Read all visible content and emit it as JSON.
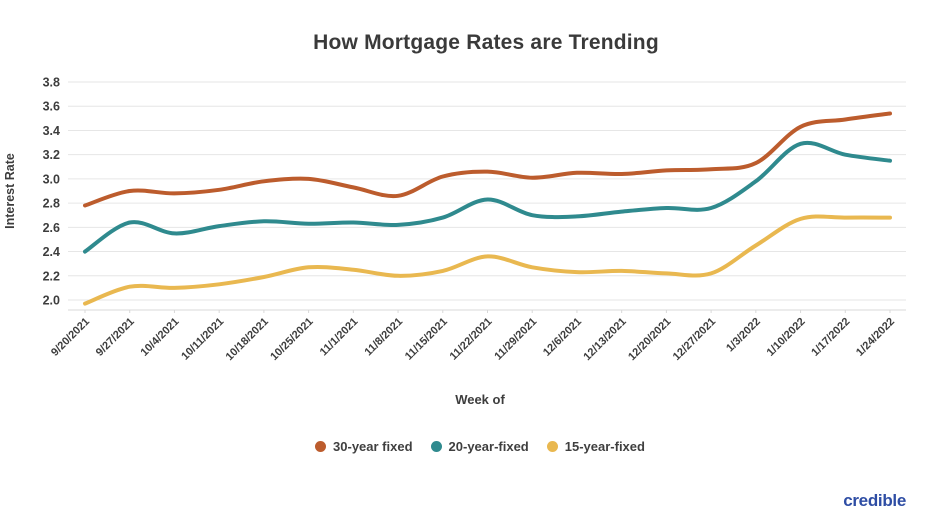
{
  "title": "How Mortgage Rates are Trending",
  "logo": "credible",
  "colors": {
    "text": "#3d3d3d",
    "gridline": "#e6e6e6",
    "axis_line": "#d8d8d8",
    "brand_navy": "#2e4da4"
  },
  "chart_data": {
    "type": "line",
    "title": "How Mortgage Rates are Trending",
    "xlabel": "Week of",
    "ylabel": "Interest Rate",
    "ylim": [
      2.0,
      3.8
    ],
    "yticks": [
      2.0,
      2.2,
      2.4,
      2.6,
      2.8,
      3.0,
      3.2,
      3.4,
      3.6,
      3.8
    ],
    "grid": true,
    "legend_position": "bottom",
    "x": [
      "9/20/2021",
      "9/27/2021",
      "10/4/2021",
      "10/11/2021",
      "10/18/2021",
      "10/25/2021",
      "11/1/2021",
      "11/8/2021",
      "11/15/2021",
      "11/22/2021",
      "11/29/2021",
      "12/6/2021",
      "12/13/2021",
      "12/20/2021",
      "12/27/2021",
      "1/3/2022",
      "1/10/2022",
      "1/17/2022",
      "1/24/2022"
    ],
    "series": [
      {
        "name": "30-year fixed",
        "color": "#bc5c2d",
        "values": [
          2.78,
          2.9,
          2.88,
          2.91,
          2.98,
          3.0,
          2.93,
          2.86,
          3.02,
          3.06,
          3.01,
          3.05,
          3.04,
          3.07,
          3.08,
          3.13,
          3.43,
          3.49,
          3.54
        ]
      },
      {
        "name": "20-year-fixed",
        "color": "#2f8a8e",
        "values": [
          2.4,
          2.64,
          2.55,
          2.61,
          2.65,
          2.63,
          2.64,
          2.62,
          2.68,
          2.83,
          2.7,
          2.69,
          2.73,
          2.76,
          2.76,
          2.98,
          3.29,
          3.2,
          3.15
        ]
      },
      {
        "name": "15-year-fixed",
        "color": "#e9b850",
        "values": [
          1.97,
          2.11,
          2.1,
          2.13,
          2.19,
          2.27,
          2.25,
          2.2,
          2.24,
          2.36,
          2.27,
          2.23,
          2.24,
          2.22,
          2.22,
          2.45,
          2.67,
          2.68,
          2.68
        ]
      }
    ]
  }
}
